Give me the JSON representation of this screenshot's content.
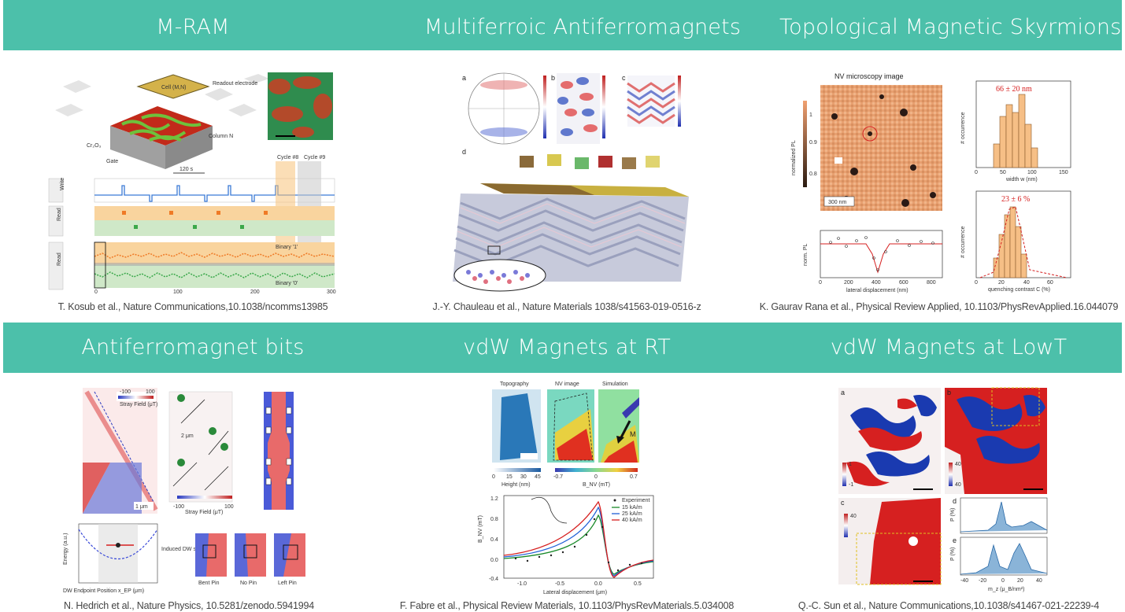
{
  "sections": {
    "top": [
      {
        "title": "M-RAM",
        "caption": "T. Kosub et al., Nature Communications,10.1038/ncomms13985"
      },
      {
        "title": "Multiferroic Antiferromagnets",
        "caption": "J.-Y. Chauleau et al., Nature Materials 1038/s41563-019-0516-z"
      },
      {
        "title": "Topological Magnetic Skyrmions",
        "caption": "K. Gaurav Rana et al., Physical Review Applied, 10.1103/PhysRevApplied.16.044079"
      }
    ],
    "bottom": [
      {
        "title": "Antiferromagnet bits",
        "caption": "N. Hedrich et al., Nature Physics, 10.5281/zenodo.5941994"
      },
      {
        "title": "vdW Magnets at RT",
        "caption": "F. Fabre et al., Physical Review Materials, 10.1103/PhysRevMaterials.5.034008"
      },
      {
        "title": "vdW Magnets at LowT",
        "caption": "Q.-C. Sun et al., Nature Communications,10.1038/s41467-021-22239-4"
      }
    ]
  },
  "figures": {
    "mram": {
      "readout": "Readout electrode",
      "cell": "Cell (M,N)",
      "column": "Column N",
      "material": "Cr₂O₃",
      "gate": "Gate",
      "time_marker": "120 s",
      "cycle1": "Cycle #8",
      "cycle2": "Cycle #9",
      "row_write": "Write",
      "row_read": "Read",
      "row_read2": "Read",
      "binary1": "Binary '1'",
      "binary0": "Binary '0'",
      "xticks": [
        "0",
        "100",
        "200",
        "300"
      ]
    },
    "multiferroic": {
      "panel_a": "a",
      "panel_b": "b",
      "panel_c": "c",
      "panel_d": "d"
    },
    "skyrmion": {
      "nv_title": "NV microscopy image",
      "colorbar_label": "normalized PL",
      "cb_ticks": [
        "1",
        "0.9",
        "0.8"
      ],
      "scalebar": "300 nm",
      "hist1_label": "66 ± 20 nm",
      "hist1_xlabel": "width w (nm)",
      "hist1_ylabel": "# occurrence",
      "hist2_label": "23 ± 6 %",
      "hist2_xlabel": "quenching contrast C (%)",
      "hist2_ylabel": "# occurrence",
      "profile_xlabel": "lateral displacement (nm)",
      "profile_ylabel": "norm. PL",
      "profile_xticks": [
        "0",
        "200",
        "400",
        "600",
        "800"
      ],
      "hist1_xticks": [
        "0",
        "50",
        "100",
        "150"
      ],
      "hist2_xticks": [
        "0",
        "20",
        "40",
        "60"
      ]
    },
    "afmbits": {
      "cb_title": "Stray Field (μT)",
      "cb_min": "-100",
      "cb_max": "100",
      "scale1": "1 μm",
      "scale2": "2 μm",
      "cb2_title": "Stray Field (μT)",
      "cb2_min": "-100",
      "cb2_max": "100",
      "ylabel": "Energy (a.u.)",
      "xlabel": "DW Endpoint Position x_EP (μm)",
      "induced": "Induced DW shift",
      "pin_a": "Bent Pin",
      "pin_b": "No Pin",
      "pin_c": "Left Pin"
    },
    "vdwrt": {
      "col1": "Topography",
      "col2": "NV image",
      "col3": "Simulation",
      "arrow": "M",
      "height_label": "Height (nm)",
      "height_ticks": [
        "0",
        "15",
        "30",
        "45"
      ],
      "field_label": "B_NV (mT)",
      "field_ticks": [
        "-0.7",
        "0",
        "0.7"
      ],
      "legend": [
        "Experiment",
        "15 kA/m",
        "25 kA/m",
        "40 kA/m"
      ],
      "legend_colors": [
        "#222222",
        "#1a8a2a",
        "#1f5fd6",
        "#d61f1f"
      ],
      "ylabel": "B_NV (mT)",
      "xlabel": "Lateral displacement (μm)",
      "yticks": [
        "1.2",
        "0.8",
        "0.4",
        "0.0",
        "-0.4"
      ],
      "xticks": [
        "-1.0",
        "-0.5",
        "0.0",
        "0.5"
      ]
    },
    "vdwlow": {
      "panel_a": "a",
      "panel_b": "b",
      "panel_c": "c",
      "panel_d": "d",
      "panel_e": "e",
      "cb_a_top": "1",
      "cb_a_bot": "-1",
      "cb_b_top": "40",
      "cb_b_bot": "40",
      "cb_c_top": "40",
      "xlabel": "m_z (μ_B/nm²)",
      "xticks": [
        "-40",
        "-20",
        "0",
        "20",
        "40"
      ],
      "ylabel_d": "P (%)",
      "ylabel_e": "P (%)"
    }
  }
}
